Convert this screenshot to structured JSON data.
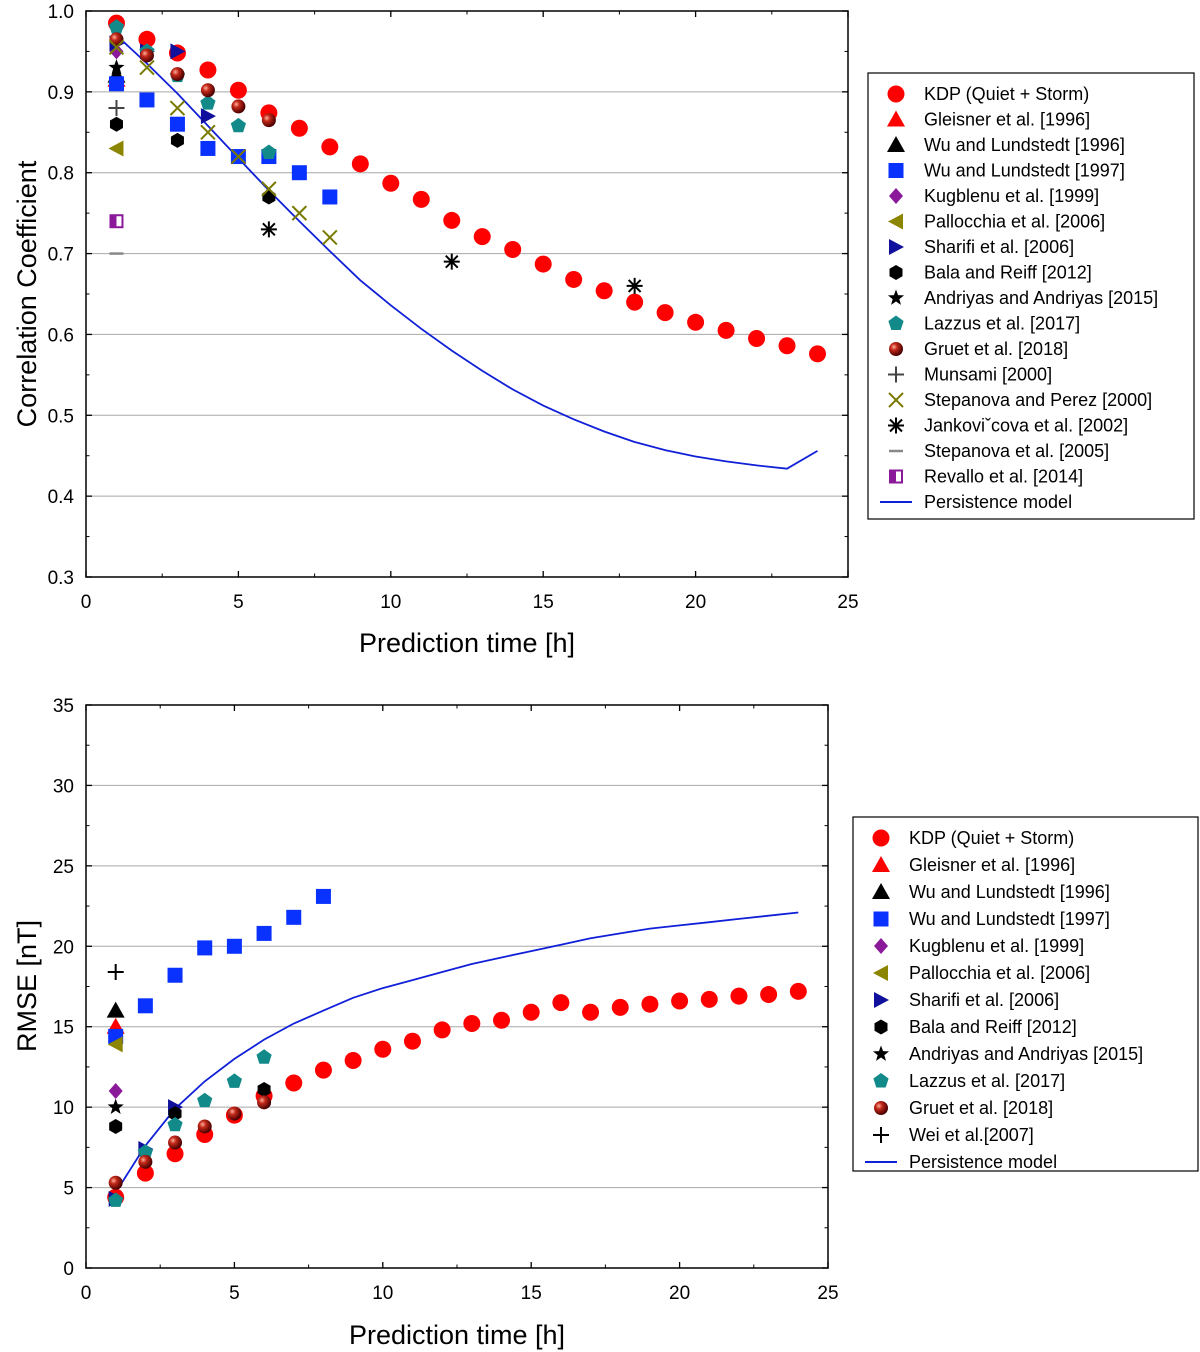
{
  "chart_data": [
    {
      "type": "scatter",
      "xlabel": "Prediction time [h]",
      "ylabel": "Correlation Coefficient",
      "xlim": [
        0,
        25
      ],
      "ylim": [
        0.3,
        1.0
      ],
      "xticks": [
        0,
        5,
        10,
        15,
        20,
        25
      ],
      "yticks": [
        0.3,
        0.4,
        0.5,
        0.6,
        0.7,
        0.8,
        0.9,
        1.0
      ],
      "ytick_labels": [
        "0.3",
        "0.4",
        "0.5",
        "0.6",
        "0.7",
        "0.8",
        "0.9",
        "1.0"
      ],
      "grid": "horizontal",
      "legend_position": "right",
      "series": [
        {
          "name": "KDP (Quiet + Storm)",
          "marker": "circle",
          "color": "#ff0000",
          "x": [
            1,
            2,
            3,
            4,
            5,
            6,
            7,
            8,
            9,
            10,
            11,
            12,
            13,
            14,
            15,
            16,
            17,
            18,
            19,
            20,
            21,
            22,
            23,
            24
          ],
          "y": [
            0.985,
            0.965,
            0.948,
            0.927,
            0.902,
            0.874,
            0.855,
            0.832,
            0.811,
            0.787,
            0.767,
            0.741,
            0.721,
            0.705,
            0.687,
            0.668,
            0.654,
            0.64,
            0.627,
            0.615,
            0.605,
            0.595,
            0.586,
            0.576
          ]
        },
        {
          "name": "Gleisner et al. [1996]",
          "marker": "triangle-up",
          "color": "#ff0000",
          "x": [
            1
          ],
          "y": [
            0.915
          ]
        },
        {
          "name": "Wu and Lundstedt [1996]",
          "marker": "triangle-up",
          "color": "#000000",
          "x": [
            1
          ],
          "y": [
            0.92
          ]
        },
        {
          "name": "Wu and Lundstedt [1997]",
          "marker": "square",
          "color": "#0a32ff",
          "x": [
            1,
            2,
            3,
            4,
            5,
            6,
            7,
            8
          ],
          "y": [
            0.91,
            0.89,
            0.86,
            0.83,
            0.82,
            0.82,
            0.8,
            0.77
          ]
        },
        {
          "name": "Kugblenu et al. [1999]",
          "marker": "diamond",
          "color": "#8b1a9b",
          "x": [
            1
          ],
          "y": [
            0.95
          ]
        },
        {
          "name": "Pallocchia et al. [2006]",
          "marker": "triangle-left",
          "color": "#8c8500",
          "x": [
            1
          ],
          "y": [
            0.83
          ]
        },
        {
          "name": "Sharifi et al. [2006]",
          "marker": "triangle-right",
          "color": "#10109c",
          "x": [
            1,
            2,
            3,
            4
          ],
          "y": [
            0.96,
            0.95,
            0.95,
            0.87
          ]
        },
        {
          "name": "Bala and Reiff [2012]",
          "marker": "hexagon",
          "color": "#000000",
          "x": [
            1,
            3,
            6
          ],
          "y": [
            0.86,
            0.84,
            0.77
          ]
        },
        {
          "name": "Andriyas and Andriyas [2015]",
          "marker": "star",
          "color": "#000000",
          "x": [
            1
          ],
          "y": [
            0.93
          ]
        },
        {
          "name": "Lazzus et al. [2017]",
          "marker": "pentagon",
          "color": "#128a8a",
          "x": [
            1,
            2,
            3,
            4,
            5,
            6
          ],
          "y": [
            0.98,
            0.95,
            0.92,
            0.886,
            0.858,
            0.825
          ]
        },
        {
          "name": "Gruet et al. [2018]",
          "marker": "sphere",
          "color": "#8b0000",
          "x": [
            1,
            2,
            3,
            4,
            5,
            6
          ],
          "y": [
            0.965,
            0.945,
            0.922,
            0.902,
            0.882,
            0.865
          ]
        },
        {
          "name": "Munsami [2000]",
          "marker": "plus",
          "color": "#444444",
          "x": [
            1
          ],
          "y": [
            0.88
          ]
        },
        {
          "name": "Stepanova and Perez [2000]",
          "marker": "x",
          "color": "#7a7a00",
          "x": [
            1,
            2,
            3,
            4,
            5,
            6,
            7,
            8
          ],
          "y": [
            0.955,
            0.93,
            0.88,
            0.85,
            0.82,
            0.78,
            0.75,
            0.72
          ]
        },
        {
          "name": "Jankoviˇcova et al. [2002]",
          "marker": "asterisk",
          "color": "#000000",
          "x": [
            6,
            12,
            18
          ],
          "y": [
            0.73,
            0.69,
            0.66
          ]
        },
        {
          "name": "Stepanova et al. [2005]",
          "marker": "dash",
          "color": "#888888",
          "x": [
            1
          ],
          "y": [
            0.7
          ]
        },
        {
          "name": "Revallo et al. [2014]",
          "marker": "half-square",
          "color": "#8b1a9b",
          "x": [
            1
          ],
          "y": [
            0.74
          ]
        },
        {
          "name": "Persistence model",
          "marker": "line",
          "color": "#1020d8",
          "x": [
            1,
            2,
            3,
            4,
            5,
            6,
            7,
            8,
            9,
            10,
            11,
            12,
            13,
            14,
            15,
            16,
            17,
            18,
            19,
            20,
            21,
            22,
            23,
            24
          ],
          "y": [
            0.97,
            0.935,
            0.898,
            0.858,
            0.818,
            0.778,
            0.74,
            0.703,
            0.667,
            0.636,
            0.607,
            0.58,
            0.555,
            0.532,
            0.512,
            0.495,
            0.48,
            0.467,
            0.457,
            0.449,
            0.443,
            0.438,
            0.434,
            0.456
          ]
        }
      ]
    },
    {
      "type": "scatter",
      "xlabel": "Prediction time [h]",
      "ylabel": "RMSE [nT]",
      "xlim": [
        0,
        25
      ],
      "ylim": [
        0,
        35
      ],
      "xticks": [
        0,
        5,
        10,
        15,
        20,
        25
      ],
      "yticks": [
        0,
        5,
        10,
        15,
        20,
        25,
        30,
        35
      ],
      "ytick_labels": [
        "0",
        "5",
        "10",
        "15",
        "20",
        "25",
        "30",
        "35"
      ],
      "grid": "horizontal",
      "legend_position": "right",
      "series": [
        {
          "name": "KDP (Quiet + Storm)",
          "marker": "circle",
          "color": "#ff0000",
          "x": [
            1,
            2,
            3,
            4,
            5,
            6,
            7,
            8,
            9,
            10,
            11,
            12,
            13,
            14,
            15,
            16,
            17,
            18,
            19,
            20,
            21,
            22,
            23,
            24
          ],
          "y": [
            4.4,
            5.9,
            7.1,
            8.3,
            9.5,
            10.7,
            11.5,
            12.3,
            12.9,
            13.6,
            14.1,
            14.8,
            15.2,
            15.4,
            15.9,
            16.5,
            15.9,
            16.2,
            16.4,
            16.6,
            16.7,
            16.9,
            17.0,
            17.2
          ]
        },
        {
          "name": "Gleisner et al. [1996]",
          "marker": "triangle-up",
          "color": "#ff0000",
          "x": [
            1
          ],
          "y": [
            15.0
          ]
        },
        {
          "name": "Wu and Lundstedt [1996]",
          "marker": "triangle-up",
          "color": "#000000",
          "x": [
            1
          ],
          "y": [
            16.0
          ]
        },
        {
          "name": "Wu and Lundstedt [1997]",
          "marker": "square",
          "color": "#0a32ff",
          "x": [
            1,
            2,
            3,
            4,
            5,
            6,
            7,
            8
          ],
          "y": [
            14.4,
            16.3,
            18.2,
            19.9,
            20.0,
            20.8,
            21.8,
            23.1
          ]
        },
        {
          "name": "Kugblenu et al. [1999]",
          "marker": "diamond",
          "color": "#8b1a9b",
          "x": [
            1
          ],
          "y": [
            11.0
          ]
        },
        {
          "name": "Pallocchia et al. [2006]",
          "marker": "triangle-left",
          "color": "#8c8500",
          "x": [
            1
          ],
          "y": [
            13.9
          ]
        },
        {
          "name": "Sharifi et al. [2006]",
          "marker": "triangle-right",
          "color": "#10109c",
          "x": [
            1,
            2,
            3
          ],
          "y": [
            4.3,
            7.4,
            10.0
          ]
        },
        {
          "name": "Bala and Reiff [2012]",
          "marker": "hexagon",
          "color": "#000000",
          "x": [
            1,
            3,
            6
          ],
          "y": [
            8.8,
            9.6,
            11.1
          ]
        },
        {
          "name": "Andriyas and Andriyas [2015]",
          "marker": "star",
          "color": "#000000",
          "x": [
            1
          ],
          "y": [
            10.0
          ]
        },
        {
          "name": "Lazzus et al. [2017]",
          "marker": "pentagon",
          "color": "#128a8a",
          "x": [
            1,
            2,
            3,
            4,
            5,
            6
          ],
          "y": [
            4.2,
            7.2,
            8.9,
            10.4,
            11.6,
            13.1
          ]
        },
        {
          "name": "Gruet et al. [2018]",
          "marker": "sphere",
          "color": "#8b0000",
          "x": [
            1,
            2,
            3,
            4,
            5,
            6
          ],
          "y": [
            5.3,
            6.6,
            7.8,
            8.8,
            9.6,
            10.3
          ]
        },
        {
          "name": "Wei et al.[2007]",
          "marker": "plus",
          "color": "#000000",
          "x": [
            1
          ],
          "y": [
            18.4
          ]
        },
        {
          "name": "Persistence model",
          "marker": "line",
          "color": "#1020d8",
          "x": [
            1,
            2,
            3,
            4,
            5,
            6,
            7,
            8,
            9,
            10,
            11,
            12,
            13,
            14,
            15,
            16,
            17,
            18,
            19,
            20,
            21,
            22,
            23,
            24
          ],
          "y": [
            4.7,
            7.6,
            9.9,
            11.6,
            13.0,
            14.2,
            15.2,
            16.0,
            16.8,
            17.4,
            17.9,
            18.4,
            18.9,
            19.3,
            19.7,
            20.1,
            20.5,
            20.8,
            21.1,
            21.3,
            21.5,
            21.7,
            21.9,
            22.1
          ]
        }
      ]
    }
  ]
}
